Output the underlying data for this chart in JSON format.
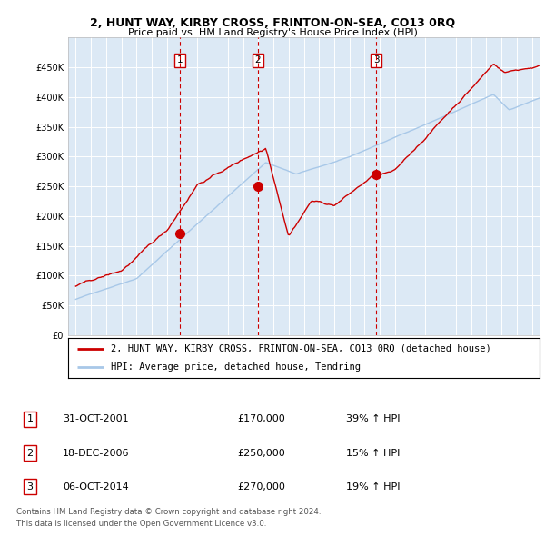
{
  "title": "2, HUNT WAY, KIRBY CROSS, FRINTON-ON-SEA, CO13 0RQ",
  "subtitle": "Price paid vs. HM Land Registry's House Price Index (HPI)",
  "legend_line1": "2, HUNT WAY, KIRBY CROSS, FRINTON-ON-SEA, CO13 0RQ (detached house)",
  "legend_line2": "HPI: Average price, detached house, Tendring",
  "transactions": [
    {
      "num": 1,
      "date": "31-OCT-2001",
      "price": 170000,
      "pct": "39%",
      "dir": "↑"
    },
    {
      "num": 2,
      "date": "18-DEC-2006",
      "price": 250000,
      "pct": "15%",
      "dir": "↑"
    },
    {
      "num": 3,
      "date": "06-OCT-2014",
      "price": 270000,
      "pct": "19%",
      "dir": "↑"
    }
  ],
  "transaction_dates": [
    2001.83,
    2006.96,
    2014.76
  ],
  "transaction_prices": [
    170000,
    250000,
    270000
  ],
  "footer1": "Contains HM Land Registry data © Crown copyright and database right 2024.",
  "footer2": "This data is licensed under the Open Government Licence v3.0.",
  "hpi_color": "#a8c8e8",
  "price_color": "#cc0000",
  "plot_bg": "#dce9f5",
  "ylim": [
    0,
    500000
  ],
  "yticks": [
    0,
    50000,
    100000,
    150000,
    200000,
    250000,
    300000,
    350000,
    400000,
    450000
  ],
  "xmin": 1994.5,
  "xmax": 2025.5
}
